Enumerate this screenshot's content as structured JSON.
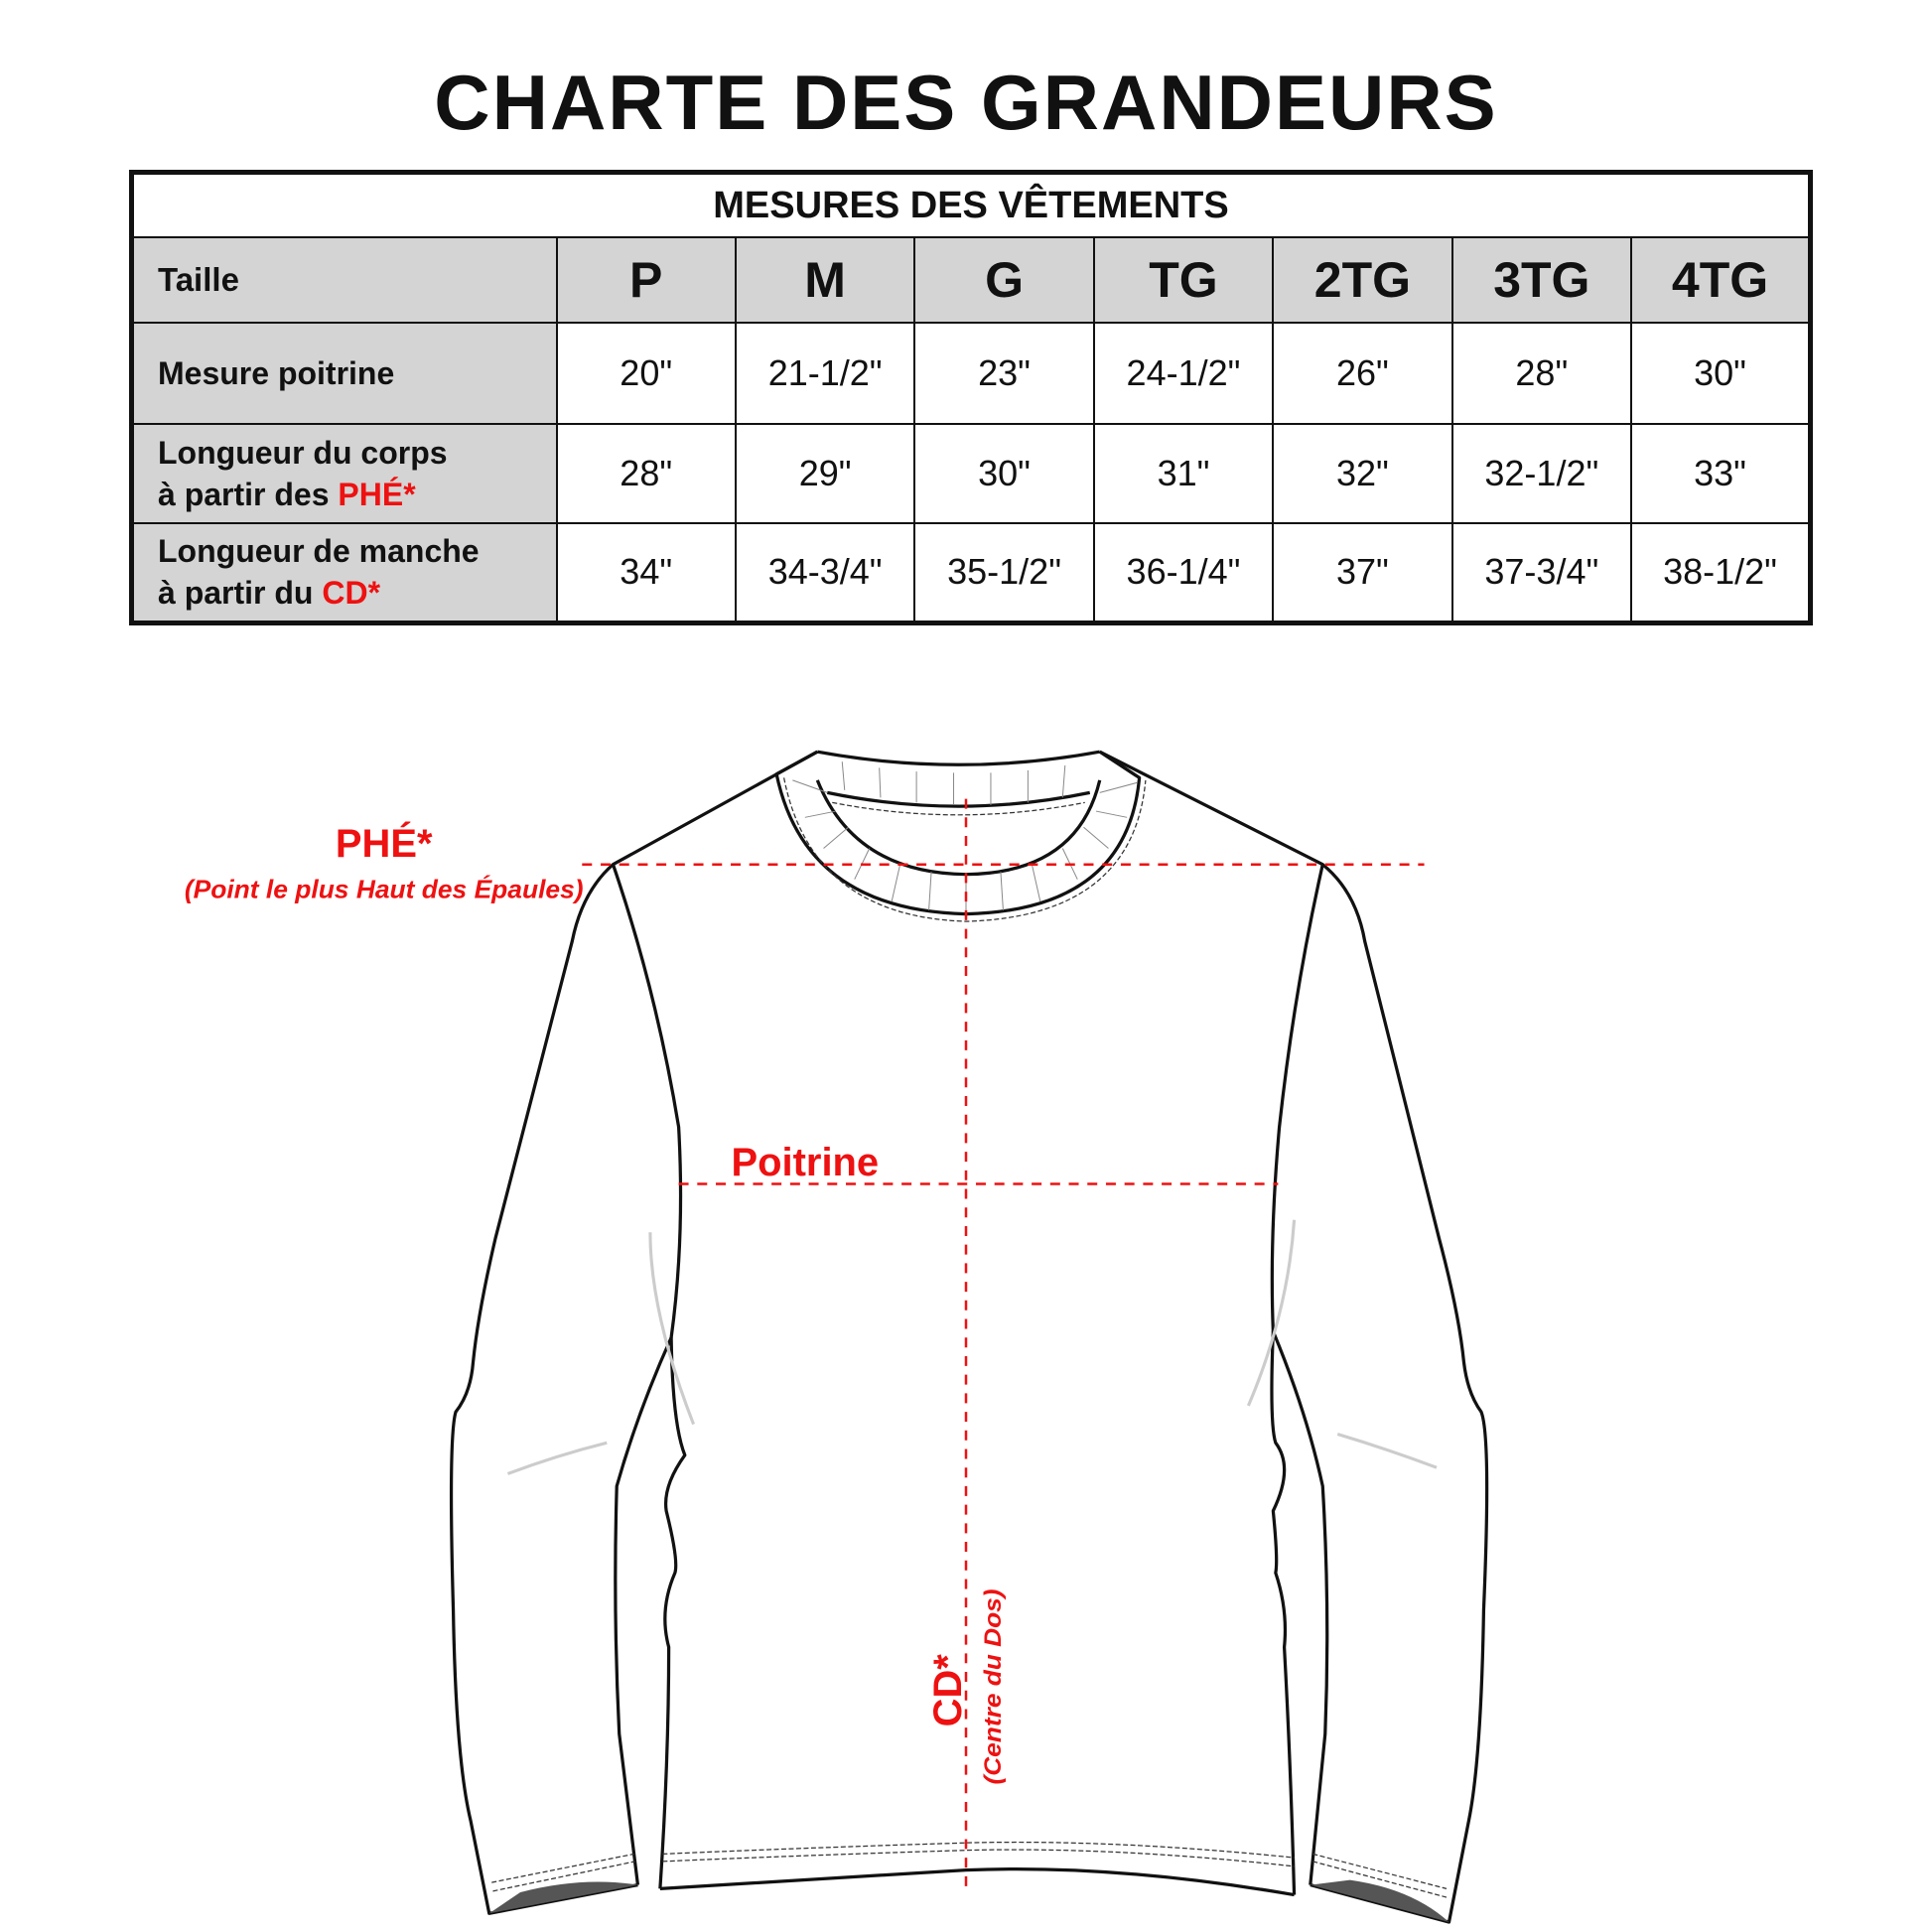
{
  "title": "CHARTE DES GRANDEURS",
  "table": {
    "caption": "MESURES DES VÊTEMENTS",
    "size_label": "Taille",
    "sizes": [
      "P",
      "M",
      "G",
      "TG",
      "2TG",
      "3TG",
      "4TG"
    ],
    "rows": [
      {
        "label_line1": "Mesure poitrine",
        "label_line2": "",
        "label_red": "",
        "values": [
          "20\"",
          "21-1/2\"",
          "23\"",
          "24-1/2\"",
          "26\"",
          "28\"",
          "30\""
        ]
      },
      {
        "label_line1": "Longueur du corps",
        "label_line2": "à partir des ",
        "label_red": "PHÉ*",
        "values": [
          "28\"",
          "29\"",
          "30\"",
          "31\"",
          "32\"",
          "32-1/2\"",
          "33\""
        ]
      },
      {
        "label_line1": "Longueur de manche",
        "label_line2": "à partir du ",
        "label_red": "CD*",
        "values": [
          "34\"",
          "34-3/4\"",
          "35-1/2\"",
          "36-1/4\"",
          "37\"",
          "37-3/4\"",
          "38-1/2\""
        ]
      }
    ]
  },
  "diagram": {
    "phe_label": "PHÉ*",
    "phe_desc": "(Point le plus Haut des Épaules)",
    "chest_label": "Poitrine",
    "cd_label": "CD*",
    "cd_desc": "(Centre du Dos)"
  },
  "colors": {
    "accent": "#ee1111",
    "header_bg": "#d4d4d4"
  }
}
